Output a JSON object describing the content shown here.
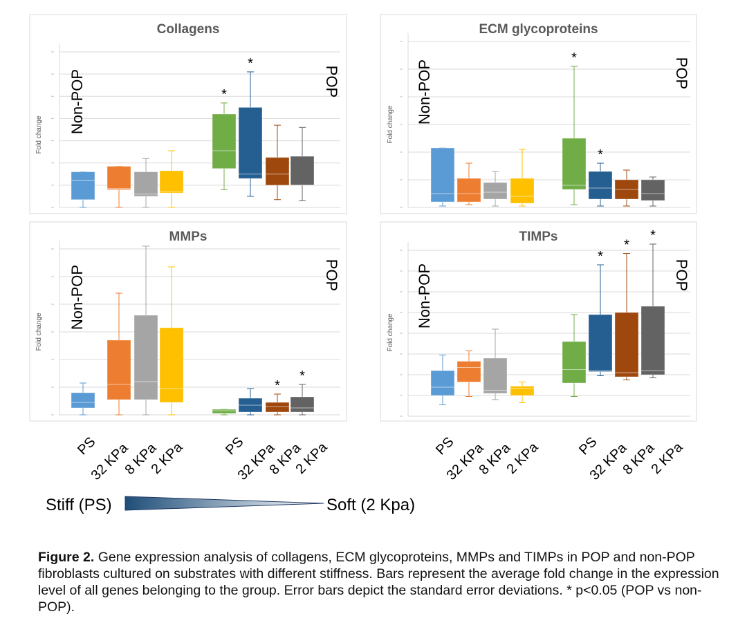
{
  "chart_data": [
    {
      "type": "box",
      "title": "Collagens",
      "ylabel": "Fold change",
      "group_labels": [
        "Non-POP",
        "POP"
      ],
      "ylim": [
        0,
        7
      ],
      "categories": [
        "PS",
        "32 KPa",
        "8 KPa",
        "2 KPa",
        "PS",
        "32 KPa",
        "8 KPa",
        "2 KPa"
      ],
      "colors": [
        "#5b9bd5",
        "#ed7d31",
        "#a5a5a5",
        "#ffc000",
        "#70ad47",
        "#255e91",
        "#9e480e",
        "#636363"
      ],
      "boxes": [
        {
          "min": 0.0,
          "q1": 0.35,
          "median": 1.2,
          "q3": 1.6,
          "max": 1.6
        },
        {
          "min": 0.0,
          "q1": 0.8,
          "median": 0.85,
          "q3": 1.85,
          "max": 1.85
        },
        {
          "min": 0.0,
          "q1": 0.5,
          "median": 0.6,
          "q3": 1.6,
          "max": 2.2
        },
        {
          "min": 0.0,
          "q1": 0.65,
          "median": 0.7,
          "q3": 1.65,
          "max": 2.55
        },
        {
          "min": 0.8,
          "q1": 1.75,
          "median": 2.55,
          "q3": 4.2,
          "max": 4.7
        },
        {
          "min": 0.5,
          "q1": 1.3,
          "median": 1.5,
          "q3": 4.5,
          "max": 6.1
        },
        {
          "min": 0.35,
          "q1": 1.0,
          "median": 1.5,
          "q3": 2.25,
          "max": 3.7
        },
        {
          "min": 0.3,
          "q1": 1.0,
          "median": 1.0,
          "q3": 2.3,
          "max": 3.6
        }
      ],
      "significant": [
        false,
        false,
        false,
        false,
        true,
        true,
        false,
        false
      ],
      "star_label": "*"
    },
    {
      "type": "box",
      "title": "ECM glycoproteins",
      "ylabel": "Fold change",
      "group_labels": [
        "Non-POP",
        "POP"
      ],
      "ylim": [
        0,
        6
      ],
      "categories": [
        "PS",
        "32 KPa",
        "8 KPa",
        "2 KPa",
        "PS",
        "32 KPa",
        "8 KPa",
        "2 KPa"
      ],
      "colors": [
        "#5b9bd5",
        "#ed7d31",
        "#a5a5a5",
        "#ffc000",
        "#70ad47",
        "#255e91",
        "#9e480e",
        "#636363"
      ],
      "boxes": [
        {
          "min": 0.05,
          "q1": 0.2,
          "median": 0.5,
          "q3": 2.15,
          "max": 2.15
        },
        {
          "min": 0.1,
          "q1": 0.2,
          "median": 0.5,
          "q3": 1.05,
          "max": 1.6
        },
        {
          "min": 0.05,
          "q1": 0.3,
          "median": 0.55,
          "q3": 0.9,
          "max": 1.3
        },
        {
          "min": 0.05,
          "q1": 0.15,
          "median": 0.4,
          "q3": 1.05,
          "max": 2.1
        },
        {
          "min": 0.1,
          "q1": 0.65,
          "median": 0.8,
          "q3": 2.5,
          "max": 5.1
        },
        {
          "min": 0.05,
          "q1": 0.3,
          "median": 0.7,
          "q3": 1.3,
          "max": 1.6
        },
        {
          "min": 0.05,
          "q1": 0.3,
          "median": 0.65,
          "q3": 1.0,
          "max": 1.35
        },
        {
          "min": 0.05,
          "q1": 0.25,
          "median": 0.5,
          "q3": 1.0,
          "max": 1.1
        }
      ],
      "significant": [
        false,
        false,
        false,
        false,
        true,
        true,
        false,
        false
      ],
      "star_label": "*"
    },
    {
      "type": "box",
      "title": "MMPs",
      "ylabel": "Fold change",
      "group_labels": [
        "Non-POP",
        "POP"
      ],
      "ylim": [
        0,
        6
      ],
      "categories": [
        "PS",
        "32 KPa",
        "8 KPa",
        "2 KPa",
        "PS",
        "32 KPa",
        "8 KPa",
        "2 KPa"
      ],
      "colors": [
        "#5b9bd5",
        "#ed7d31",
        "#a5a5a5",
        "#ffc000",
        "#70ad47",
        "#255e91",
        "#9e480e",
        "#636363"
      ],
      "boxes": [
        {
          "min": 0.0,
          "q1": 0.25,
          "median": 0.45,
          "q3": 0.8,
          "max": 1.15
        },
        {
          "min": 0.0,
          "q1": 0.55,
          "median": 1.1,
          "q3": 2.7,
          "max": 4.4
        },
        {
          "min": 0.0,
          "q1": 0.55,
          "median": 1.2,
          "q3": 3.6,
          "max": 6.1
        },
        {
          "min": 0.0,
          "q1": 0.45,
          "median": 0.95,
          "q3": 3.15,
          "max": 5.35
        },
        {
          "min": 0.0,
          "q1": 0.05,
          "median": 0.15,
          "q3": 0.2,
          "max": 0.2
        },
        {
          "min": 0.0,
          "q1": 0.1,
          "median": 0.35,
          "q3": 0.6,
          "max": 0.95
        },
        {
          "min": 0.0,
          "q1": 0.1,
          "median": 0.3,
          "q3": 0.45,
          "max": 0.75
        },
        {
          "min": 0.0,
          "q1": 0.1,
          "median": 0.25,
          "q3": 0.65,
          "max": 1.1
        }
      ],
      "significant": [
        false,
        false,
        false,
        false,
        false,
        false,
        true,
        true
      ],
      "star_label": "*"
    },
    {
      "type": "box",
      "title": "TIMPs",
      "ylabel": "Fold change",
      "group_labels": [
        "Non-POP",
        "POP"
      ],
      "ylim": [
        0,
        8
      ],
      "categories": [
        "PS",
        "32 KPa",
        "8 KPa",
        "2 KPa",
        "PS",
        "32 KPa",
        "8 KPa",
        "2 KPa"
      ],
      "colors": [
        "#5b9bd5",
        "#ed7d31",
        "#a5a5a5",
        "#ffc000",
        "#70ad47",
        "#255e91",
        "#9e480e",
        "#636363"
      ],
      "boxes": [
        {
          "min": 0.55,
          "q1": 1.0,
          "median": 1.4,
          "q3": 2.2,
          "max": 2.95
        },
        {
          "min": 0.95,
          "q1": 1.65,
          "median": 2.35,
          "q3": 2.65,
          "max": 3.15
        },
        {
          "min": 0.8,
          "q1": 1.1,
          "median": 1.25,
          "q3": 2.8,
          "max": 4.2
        },
        {
          "min": 0.65,
          "q1": 1.0,
          "median": 1.35,
          "q3": 1.45,
          "max": 1.65
        },
        {
          "min": 0.95,
          "q1": 1.6,
          "median": 2.25,
          "q3": 3.6,
          "max": 4.9
        },
        {
          "min": 1.95,
          "q1": 2.15,
          "median": 2.2,
          "q3": 4.9,
          "max": 7.3
        },
        {
          "min": 1.75,
          "q1": 1.9,
          "median": 2.1,
          "q3": 5.0,
          "max": 7.85
        },
        {
          "min": 1.85,
          "q1": 2.0,
          "median": 2.2,
          "q3": 5.3,
          "max": 8.3
        }
      ],
      "significant": [
        false,
        false,
        false,
        false,
        false,
        true,
        true,
        true
      ],
      "star_label": "*"
    }
  ],
  "x_tick_labels": [
    "PS",
    "32 KPa",
    "8 KPa",
    "2 KPa",
    "PS",
    "32 KPa",
    "8 KPa",
    "2 KPa"
  ],
  "stiffness_scale": {
    "left_label": "Stiff (PS)",
    "right_label": "Soft (2 Kpa)",
    "gradient_start": "#1f4e79",
    "gradient_end": "#ffffff"
  },
  "caption": {
    "bold": "Figure 2.",
    "text": " Gene expression analysis of collagens, ECM glycoproteins, MMPs and TIMPs in POP and non-POP fibroblasts cultured on substrates with different stiffness. Bars represent the average fold change in the expression level of all genes belonging to the group. Error bars depict the standard error deviations. * p<0.05 (POP vs non-POP)."
  }
}
